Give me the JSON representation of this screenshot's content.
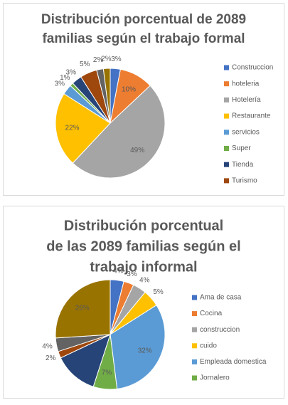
{
  "chart_data": [
    {
      "type": "pie",
      "title": [
        "Distribución porcentual de 2089",
        "familias según el trabajo formal"
      ],
      "categories": [
        "Construccion",
        "hoteleria",
        "Hotelería",
        "Restaurante",
        "servicios",
        "Super",
        "Tienda",
        "Turismo",
        null,
        null
      ],
      "values": [
        3,
        10,
        49,
        22,
        3,
        1,
        3,
        5,
        2,
        2
      ],
      "value_labels": [
        "3%",
        "10%",
        "49%",
        "22%",
        "3%",
        "1%",
        "3%",
        "5%",
        "2%",
        "2%"
      ],
      "colors": [
        "#4472c4",
        "#ed7d31",
        "#a5a5a5",
        "#ffc000",
        "#5b9bd5",
        "#70ad47",
        "#264478",
        "#9e480e",
        "#636363",
        "#997300"
      ]
    },
    {
      "type": "pie",
      "title": [
        "Distribución porcentual",
        "de las 2089 familias según el",
        "trabajo informal"
      ],
      "categories": [
        "Ama de casa",
        "Cocina",
        "construccion",
        "cuido",
        "Empleada  domestica",
        "Jornalero",
        null,
        null,
        null,
        null
      ],
      "values": [
        4,
        3,
        4,
        5,
        32,
        7,
        13,
        2,
        4,
        26
      ],
      "value_labels": [
        "4%",
        "3%",
        "4%",
        "5%",
        "32%",
        "7%",
        null,
        "2%",
        "4%",
        "26%"
      ],
      "colors": [
        "#4472c4",
        "#ed7d31",
        "#a5a5a5",
        "#ffc000",
        "#5b9bd5",
        "#70ad47",
        "#264478",
        "#9e480e",
        "#636363",
        "#997300"
      ]
    }
  ]
}
